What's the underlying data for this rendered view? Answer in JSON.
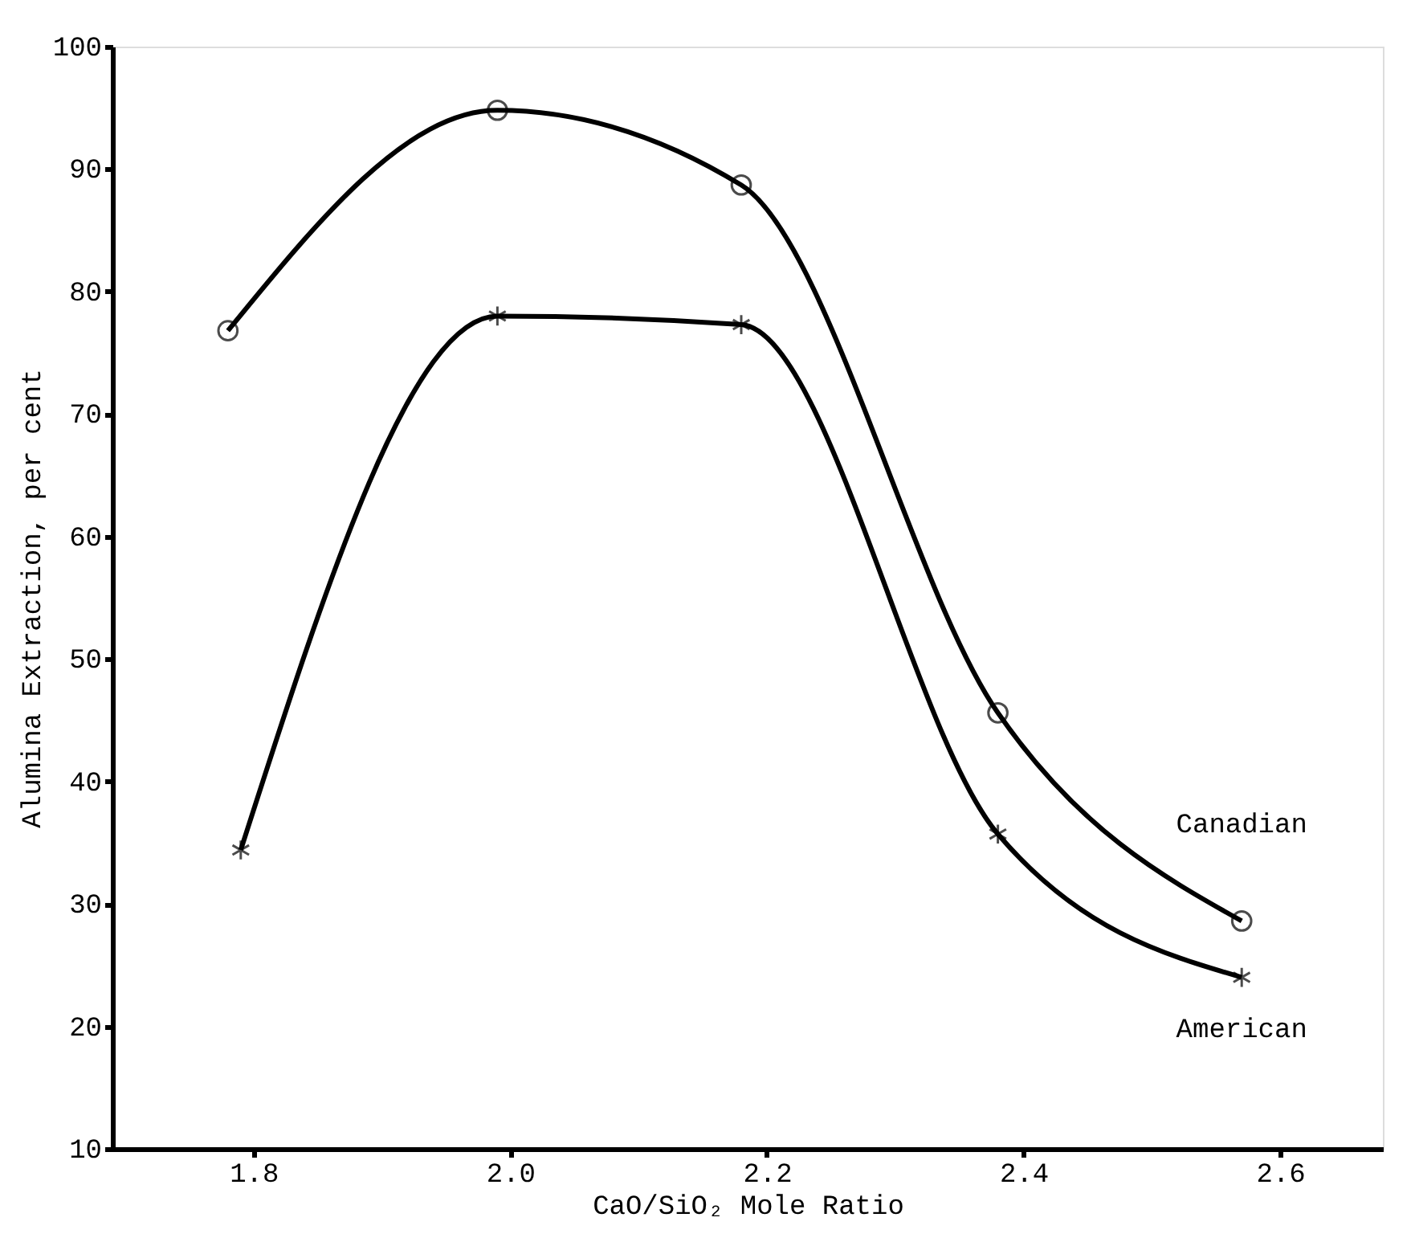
{
  "chart_data": {
    "type": "line",
    "xlabel": "CaO/SiO₂ Mole Ratio",
    "ylabel": "Alumina Extraction, per cent",
    "xlim": [
      1.69,
      2.68
    ],
    "ylim": [
      10,
      100
    ],
    "xticks": [
      1.8,
      {
        "value": 2,
        "label": "2.0"
      },
      2.2,
      2.4,
      2.6
    ],
    "yticks": [
      10,
      20,
      30,
      40,
      50,
      60,
      70,
      80,
      90,
      100
    ],
    "grid": false,
    "series": [
      {
        "name": "Canadian",
        "color": "#000000",
        "marker": "circle",
        "x": [
          1.78,
          1.99,
          2.18,
          2.38,
          2.57
        ],
        "values": [
          76.8,
          94.8,
          88.7,
          45.6,
          28.6
        ]
      },
      {
        "name": "American",
        "color": "#000000",
        "marker": "cross",
        "x": [
          1.79,
          1.99,
          2.18,
          2.38,
          2.57
        ],
        "values": [
          34.4,
          78,
          77.3,
          35.7,
          24
        ]
      }
    ]
  }
}
